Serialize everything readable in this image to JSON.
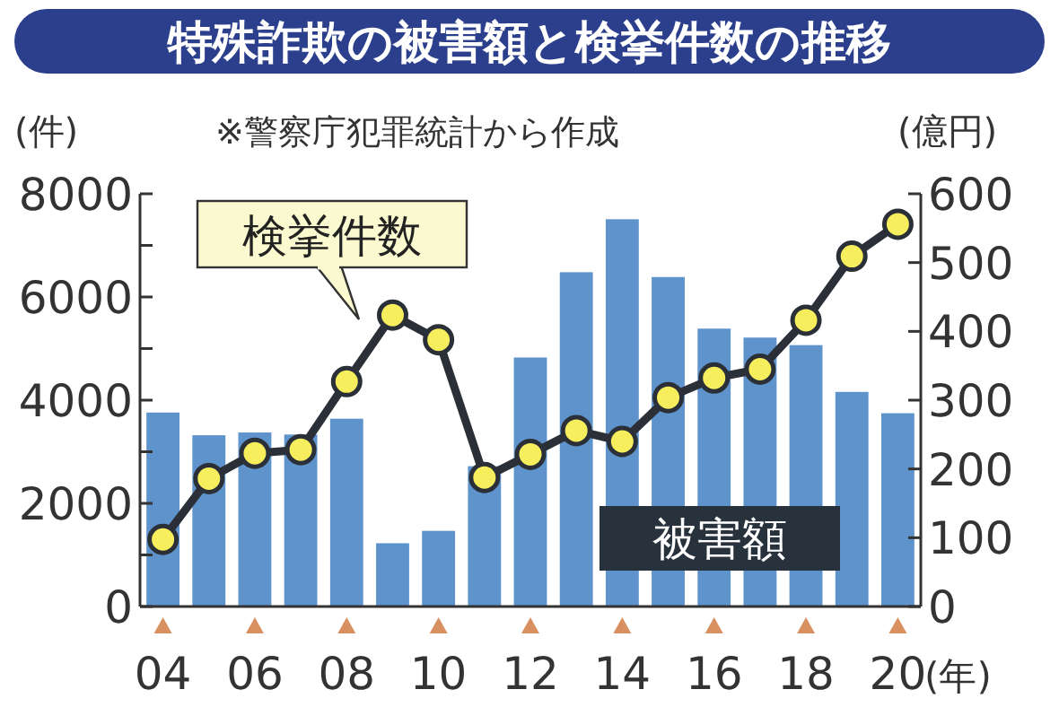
{
  "chart_data": {
    "type": "bar",
    "title": "特殊詐欺の被害額と検挙件数の推移",
    "annotations": [
      "※警察庁犯罪統計から作成"
    ],
    "xlabel": "(年)",
    "ylabel": "(件)",
    "y2label": "(億円)",
    "categories": [
      "04",
      null,
      "06",
      null,
      "08",
      null,
      "10",
      null,
      "12",
      null,
      "14",
      null,
      "16",
      null,
      "18",
      null,
      "20"
    ],
    "series": [
      {
        "name": "被害額",
        "axis": "y2",
        "color": "#5f93cc",
        "values": [
          282,
          249,
          253,
          250,
          273,
          92,
          110,
          204,
          362,
          486,
          563,
          479,
          404,
          391,
          380,
          312,
          281
        ]
      },
      {
        "name": "検挙件数",
        "type": "line",
        "color": "#2b3038",
        "marker": "circle",
        "values": [
          1300,
          2480,
          2970,
          3040,
          4360,
          5650,
          5170,
          2500,
          2950,
          3410,
          3200,
          4050,
          4430,
          4600,
          5550,
          6790,
          7410
        ]
      }
    ],
    "ylim": [
      0,
      8000
    ],
    "yticks": [
      0,
      {
        "value": 1000,
        "label": null
      },
      2000,
      {
        "value": 3000,
        "label": null
      },
      4000,
      {
        "value": 5000,
        "label": null
      },
      6000,
      {
        "value": 7000,
        "label": null
      },
      8000
    ],
    "y2lim": [
      0,
      600
    ],
    "y2ticks": [
      0,
      100,
      200,
      300,
      400,
      500,
      600
    ],
    "grid": false
  }
}
